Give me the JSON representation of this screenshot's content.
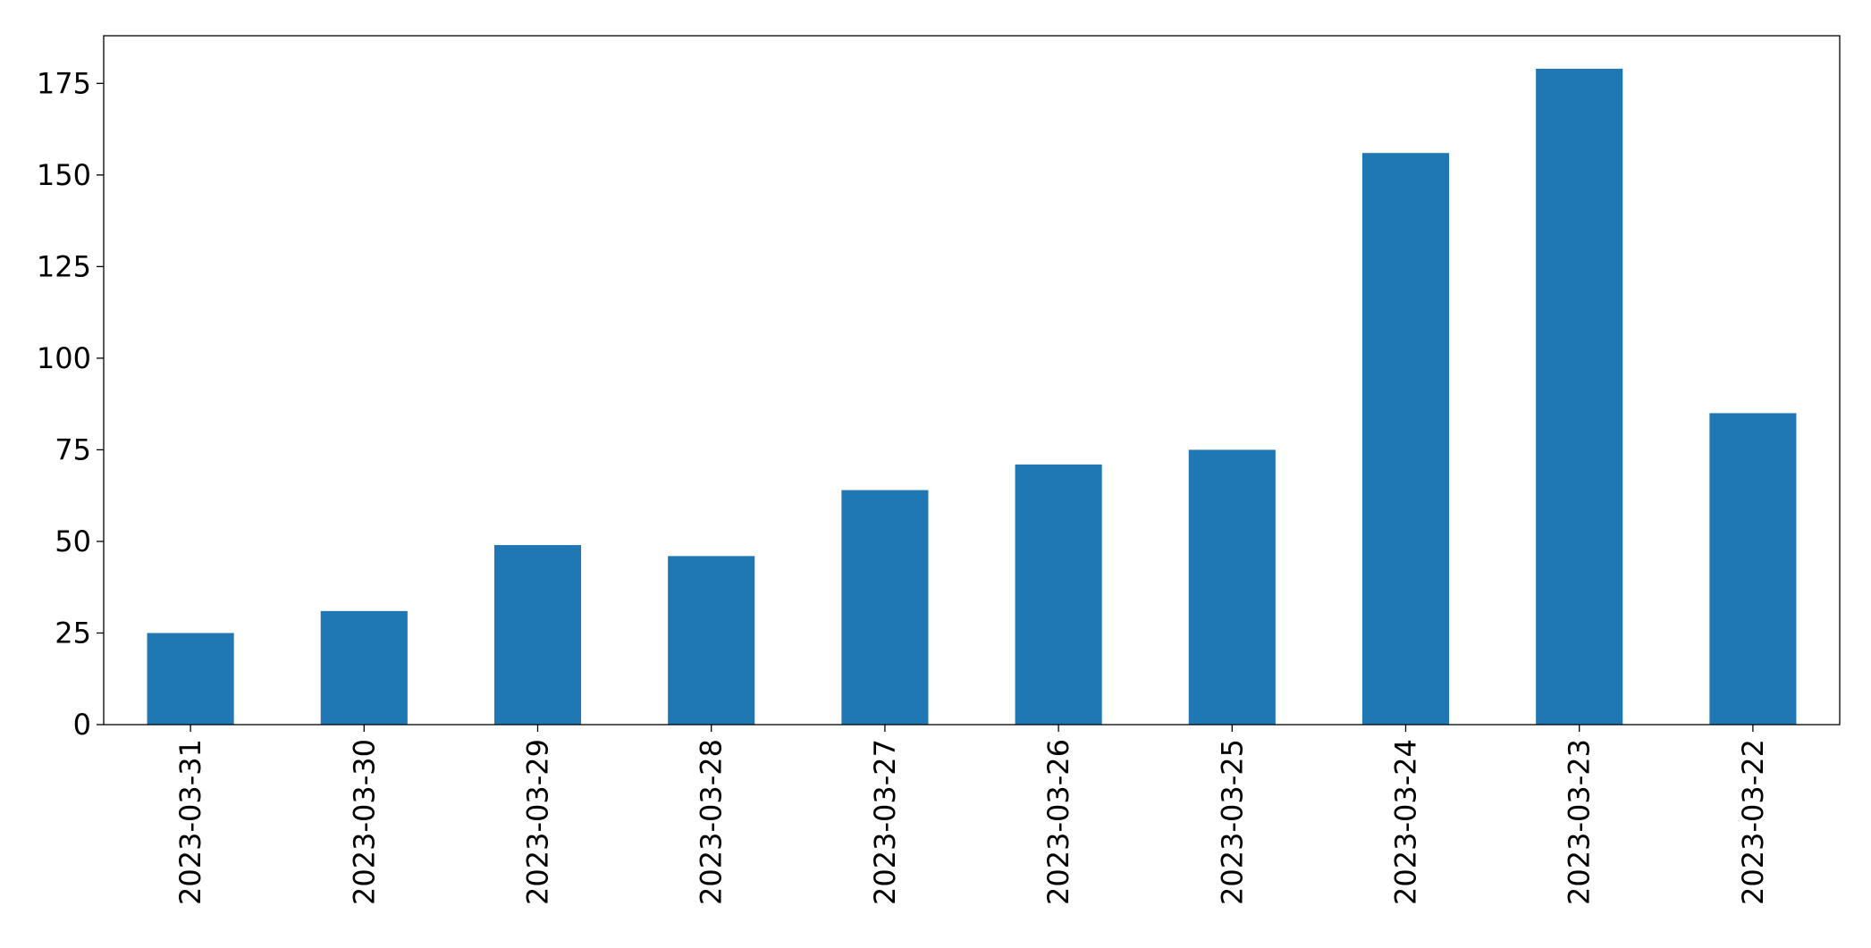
{
  "chart_data": {
    "type": "bar",
    "categories": [
      "2023-03-31",
      "2023-03-30",
      "2023-03-29",
      "2023-03-28",
      "2023-03-27",
      "2023-03-26",
      "2023-03-25",
      "2023-03-24",
      "2023-03-23",
      "2023-03-22"
    ],
    "values": [
      25,
      31,
      49,
      46,
      64,
      71,
      75,
      156,
      179,
      85
    ],
    "title": "",
    "xlabel": "",
    "ylabel": "",
    "ylim": [
      0,
      188
    ],
    "yticks": [
      0,
      25,
      50,
      75,
      100,
      125,
      150,
      175
    ],
    "grid": false,
    "legend": "none",
    "bar_color": "#1f77b4",
    "axis_color": "#000000"
  }
}
